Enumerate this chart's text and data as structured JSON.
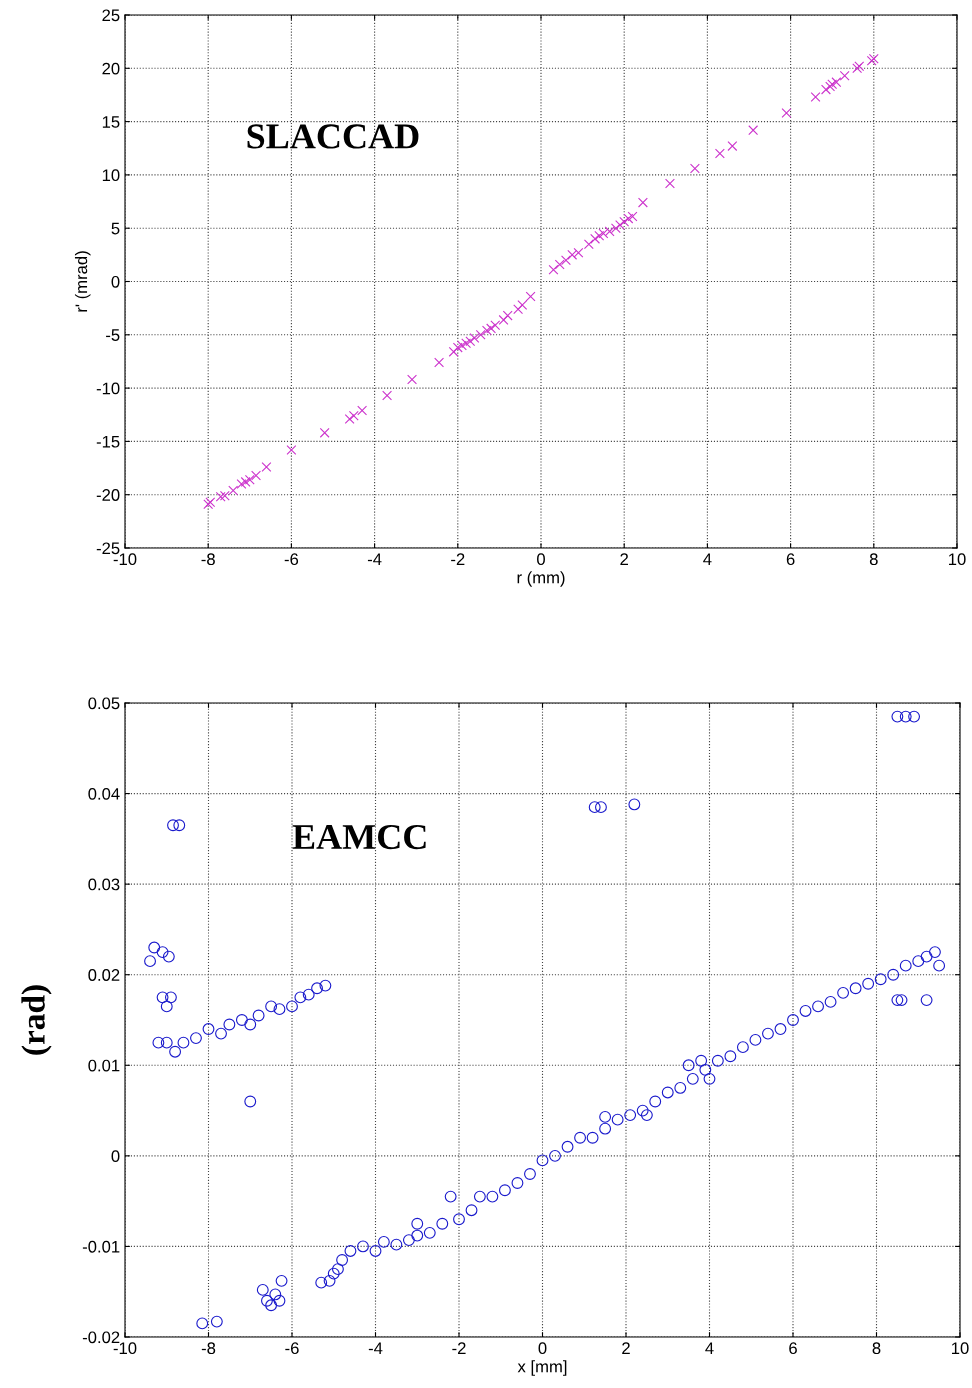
{
  "chart_data": [
    {
      "type": "scatter",
      "xlabel": "r (mm)",
      "ylabel": "r' (mrad)",
      "annotations": [
        "SLACCAD"
      ],
      "xlim": [
        -10,
        10
      ],
      "xticks": [
        -10,
        -8,
        -6,
        -4,
        -2,
        0,
        2,
        4,
        6,
        8,
        10
      ],
      "ylim": [
        -25,
        25
      ],
      "yticks": [
        -25,
        -20,
        -15,
        -10,
        -5,
        0,
        5,
        10,
        15,
        20,
        25
      ],
      "grid": true,
      "marker": "cross",
      "legend": false,
      "series": [
        {
          "color": "#cc33cc",
          "x": [
            -8,
            -7.95,
            -7.7,
            -7.6,
            -7.4,
            -7.2,
            -7.1,
            -7.0,
            -6.85,
            -6.6,
            -6.0,
            -5.2,
            -4.6,
            -4.5,
            -4.3,
            -3.7,
            -3.1,
            -2.45,
            -2.1,
            -2.0,
            -1.9,
            -1.8,
            -1.7,
            -1.6,
            -1.45,
            -1.3,
            -1.2,
            -1.1,
            -0.9,
            -0.8,
            -0.55,
            -0.45,
            -0.25,
            0.3,
            0.45,
            0.6,
            0.75,
            0.9,
            1.15,
            1.3,
            1.4,
            1.5,
            1.65,
            1.8,
            1.9,
            2.0,
            2.1,
            2.2,
            2.45,
            3.1,
            3.7,
            4.3,
            4.6,
            5.1,
            5.9,
            6.6,
            6.85,
            6.95,
            7.0,
            7.1,
            7.3,
            7.6,
            7.65,
            7.95,
            8.0
          ],
          "values": [
            -20.9,
            -20.7,
            -20.2,
            -20.1,
            -19.6,
            -19.0,
            -18.8,
            -18.6,
            -18.2,
            -17.4,
            -15.8,
            -14.2,
            -12.9,
            -12.6,
            -12.1,
            -10.7,
            -9.2,
            -7.6,
            -6.6,
            -6.2,
            -6.0,
            -5.8,
            -5.6,
            -5.3,
            -5.0,
            -4.6,
            -4.4,
            -4.1,
            -3.6,
            -3.2,
            -2.6,
            -2.2,
            -1.4,
            1.1,
            1.6,
            2.0,
            2.5,
            2.7,
            3.5,
            4.0,
            4.3,
            4.5,
            4.7,
            5.0,
            5.3,
            5.6,
            5.9,
            6.1,
            7.4,
            9.2,
            10.6,
            12.0,
            12.7,
            14.2,
            15.8,
            17.3,
            18.0,
            18.3,
            18.5,
            18.7,
            19.3,
            20.0,
            20.2,
            20.7,
            20.9
          ]
        }
      ]
    },
    {
      "type": "scatter",
      "xlabel": "x [mm]",
      "ylabel": "(rad)",
      "annotations": [
        "EAMCC"
      ],
      "xlim": [
        -10,
        10
      ],
      "xticks": [
        -10,
        -8,
        -6,
        -4,
        -2,
        0,
        2,
        4,
        6,
        8,
        10
      ],
      "ylim": [
        -0.02,
        0.05
      ],
      "yticks": [
        {
          "value": -0.02,
          "label": "-0.02"
        },
        {
          "value": -0.01,
          "label": "-0.01"
        },
        0,
        0.01,
        0.02,
        0.03,
        0.04,
        0.05
      ],
      "grid": true,
      "marker": "circle",
      "legend": false,
      "series": [
        {
          "color": "#1a1acc",
          "x": [
            -5.3,
            -5.1,
            -5.0,
            -4.9,
            -4.8,
            -4.6,
            -4.3,
            -4.0,
            -3.8,
            -3.5,
            -3.2,
            -3.0,
            -2.7,
            -2.4,
            -2.0,
            -1.7,
            -1.5,
            -1.2,
            -0.9,
            -0.6,
            -0.3,
            0,
            0.3,
            0.6,
            0.9,
            1.2,
            1.5,
            1.8,
            2.1,
            2.4,
            2.7,
            3.0,
            3.3,
            3.6,
            3.9,
            4.2,
            4.5,
            4.8,
            5.1,
            5.4,
            5.7,
            6.0,
            6.3,
            6.6,
            6.9,
            7.2,
            7.5,
            7.8,
            8.1,
            8.4,
            8.7,
            9.0,
            9.2,
            9.4,
            9.5,
            3.5,
            3.8,
            4.0,
            2.5,
            1.5,
            -2.2,
            -3.0,
            -9.3,
            -9.4,
            -9.1,
            -8.95,
            -9.1,
            -9.0,
            -8.9,
            -8.7,
            -8.85,
            1.25,
            1.4,
            2.2,
            8.5,
            8.7,
            8.9,
            8.5,
            8.6,
            9.2,
            -7.0,
            -8.15,
            -7.8,
            -6.7,
            -6.6,
            -6.5,
            -6.3,
            -6.25,
            -6.4,
            -9.2,
            -9.0,
            -8.8,
            -8.6,
            -8.3,
            -8.0,
            -7.7,
            -7.5,
            -7.2,
            -7.0,
            -6.8,
            -6.5,
            -6.3,
            -6.0,
            -5.8,
            -5.6,
            -5.4,
            -5.2
          ],
          "values": [
            -0.014,
            -0.0138,
            -0.013,
            -0.0125,
            -0.0115,
            -0.0105,
            -0.01,
            -0.0105,
            -0.0095,
            -0.0098,
            -0.0093,
            -0.0088,
            -0.0085,
            -0.0075,
            -0.007,
            -0.006,
            -0.0045,
            -0.0045,
            -0.0038,
            -0.003,
            -0.002,
            -0.0005,
            0,
            0.001,
            0.002,
            0.002,
            0.003,
            0.004,
            0.0045,
            0.005,
            0.006,
            0.007,
            0.0075,
            0.0085,
            0.0095,
            0.0105,
            0.011,
            0.012,
            0.0128,
            0.0135,
            0.014,
            0.015,
            0.016,
            0.0165,
            0.017,
            0.018,
            0.0185,
            0.019,
            0.0195,
            0.02,
            0.021,
            0.0215,
            0.022,
            0.0225,
            0.021,
            0.01,
            0.0105,
            0.0085,
            0.0045,
            0.0043,
            -0.0045,
            -0.0075,
            0.023,
            0.0215,
            0.0225,
            0.022,
            0.0175,
            0.0165,
            0.0175,
            0.0365,
            0.0365,
            0.0385,
            0.0385,
            0.0388,
            0.0485,
            0.0485,
            0.0485,
            0.0172,
            0.0172,
            0.0172,
            0.006,
            -0.0185,
            -0.0183,
            -0.0148,
            -0.016,
            -0.0165,
            -0.016,
            -0.0138,
            -0.0153,
            0.0125,
            0.0125,
            0.0115,
            0.0125,
            0.013,
            0.014,
            0.0135,
            0.0145,
            0.015,
            0.0145,
            0.0155,
            0.0165,
            0.0162,
            0.0165,
            0.0175,
            0.0178,
            0.0185,
            0.0188
          ]
        }
      ]
    }
  ]
}
